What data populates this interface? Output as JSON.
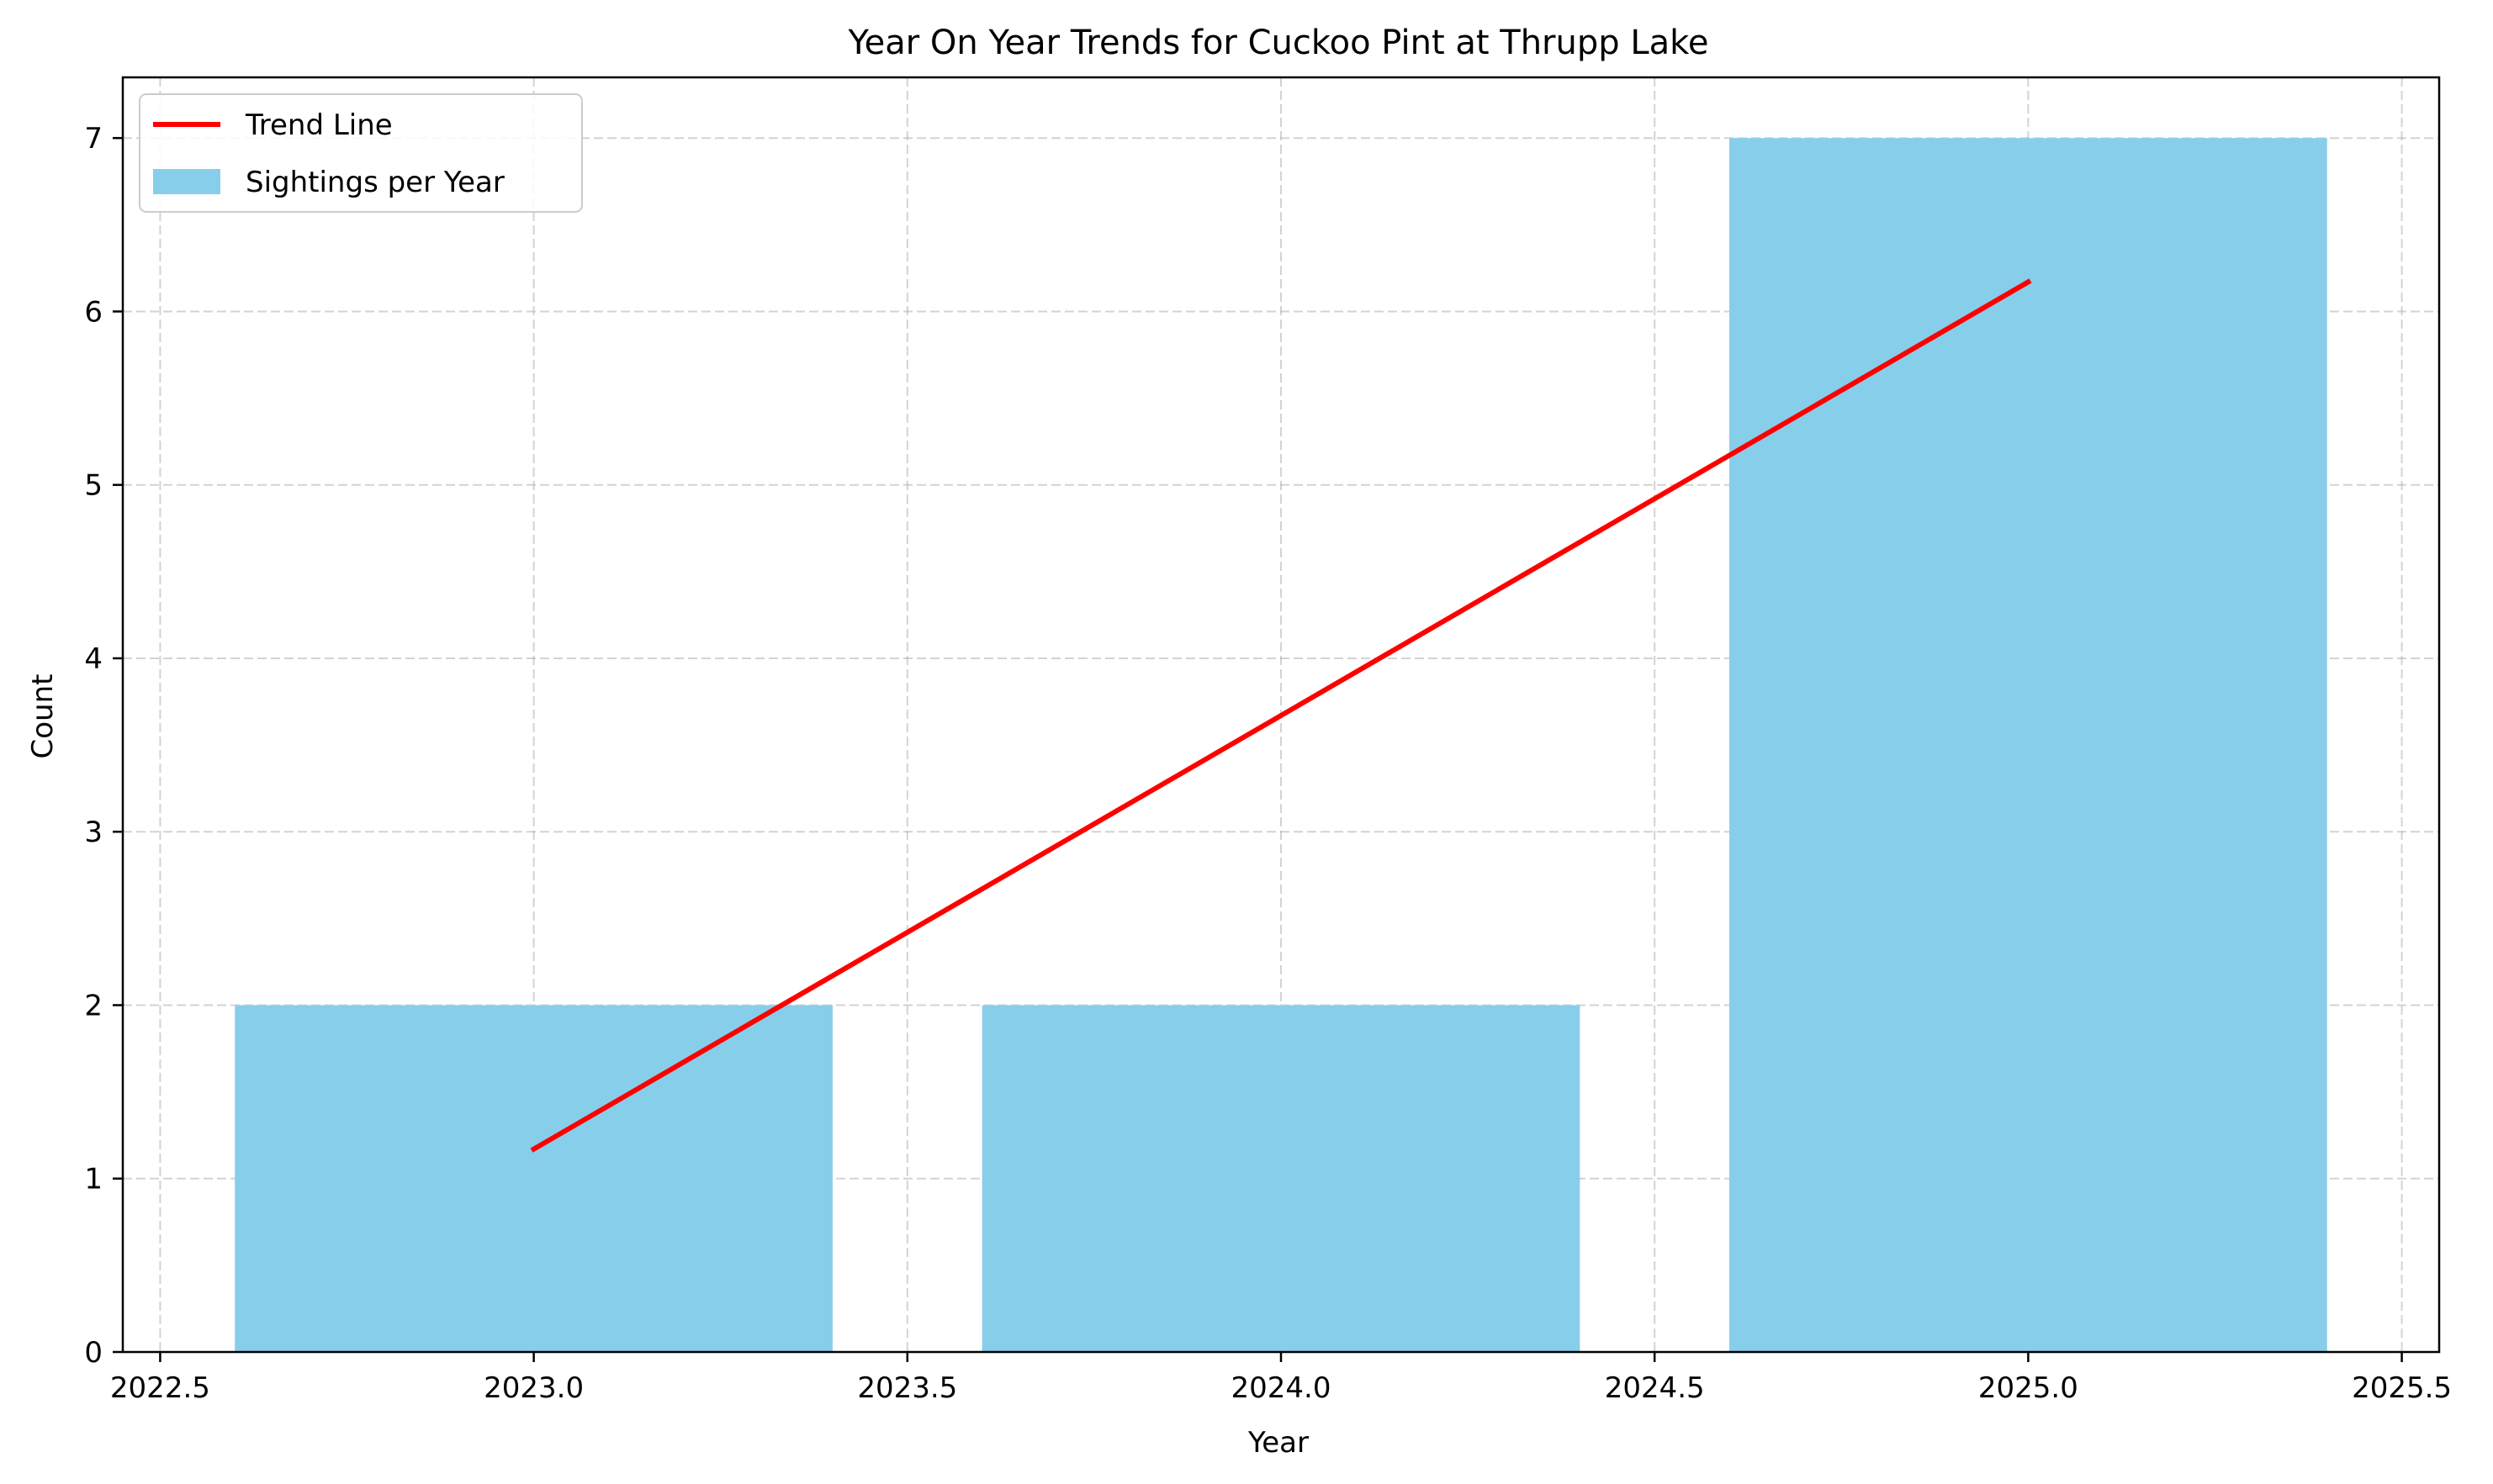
{
  "chart_data": {
    "type": "bar",
    "title": "Year On Year Trends for Cuckoo Pint at Thrupp Lake",
    "xlabel": "Year",
    "ylabel": "Count",
    "xlim": [
      2022.45,
      2025.55
    ],
    "ylim": [
      0,
      7.35
    ],
    "xticks": [
      2022.5,
      2023.0,
      2023.5,
      2024.0,
      2024.5,
      2025.0,
      2025.5
    ],
    "xtick_labels": [
      "2022.5",
      "2023.0",
      "2023.5",
      "2024.0",
      "2024.5",
      "2025.0",
      "2025.5"
    ],
    "yticks": [
      0,
      1,
      2,
      3,
      4,
      5,
      6,
      7
    ],
    "ytick_labels": [
      "0",
      "1",
      "2",
      "3",
      "4",
      "5",
      "6",
      "7"
    ],
    "grid": true,
    "legend_position": "top-left",
    "bar_width": 0.8,
    "series": [
      {
        "name": "Sightings per Year",
        "kind": "bar",
        "color": "#87ceeb",
        "x": [
          2023,
          2024,
          2025
        ],
        "values": [
          2,
          2,
          7
        ]
      },
      {
        "name": "Trend Line",
        "kind": "line",
        "color": "#ff0000",
        "x": [
          2023,
          2025
        ],
        "values": [
          1.17,
          6.17
        ]
      }
    ]
  }
}
